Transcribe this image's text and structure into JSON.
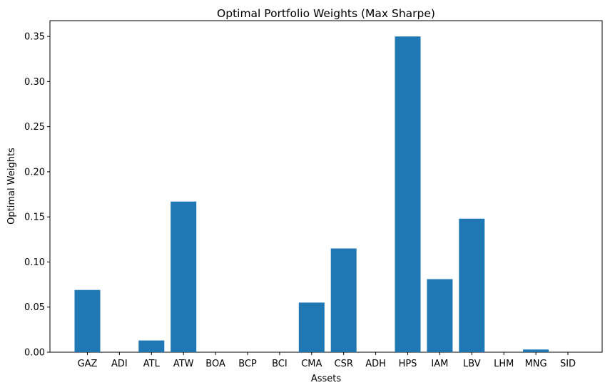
{
  "chart_data": {
    "type": "bar",
    "title": "Optimal Portfolio Weights (Max Sharpe)",
    "xlabel": "Assets",
    "ylabel": "Optimal Weights",
    "categories": [
      "GAZ",
      "ADI",
      "ATL",
      "ATW",
      "BOA",
      "BCP",
      "BCI",
      "CMA",
      "CSR",
      "ADH",
      "HPS",
      "IAM",
      "LBV",
      "LHM",
      "MNG",
      "SID"
    ],
    "values": [
      0.069,
      0.0,
      0.013,
      0.167,
      0.0,
      0.0,
      0.0,
      0.055,
      0.115,
      0.0,
      0.35,
      0.081,
      0.148,
      0.0,
      0.003,
      0.0
    ],
    "ylim": [
      0,
      0.3675
    ],
    "yticks": [
      "0.00",
      "0.05",
      "0.10",
      "0.15",
      "0.20",
      "0.25",
      "0.30",
      "0.35"
    ],
    "bar_color": "#1f77b4",
    "grid": false,
    "legend": "none"
  }
}
